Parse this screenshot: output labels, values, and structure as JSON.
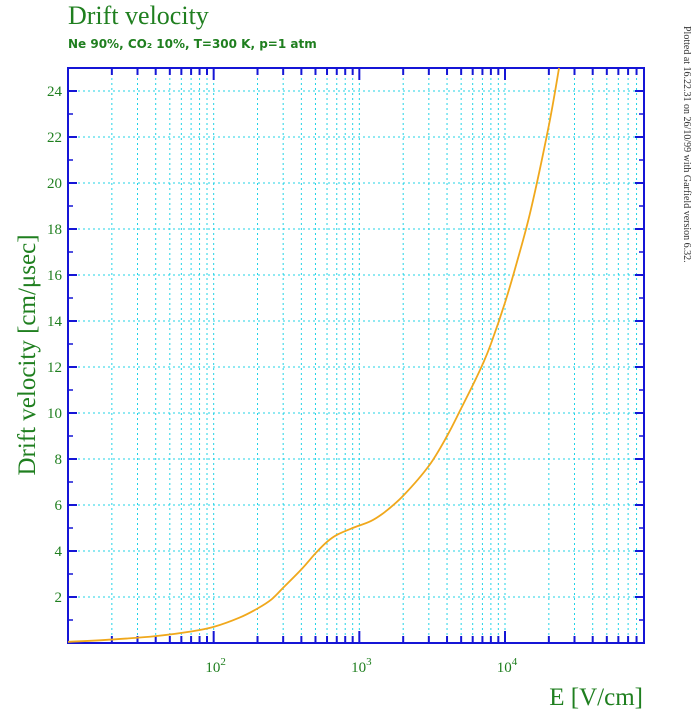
{
  "colors": {
    "frame": "#1515d6",
    "grid": "#22d3e6",
    "curve": "#f0a81c",
    "text": "#1f7f1f"
  },
  "chart_data": {
    "type": "line",
    "title": "Drift velocity",
    "subtitle": "Ne 90%, CO₂ 10%, T=300 K, p=1 atm",
    "xlabel": "E [V/cm]",
    "ylabel": "Drift velocity [cm/μsec]",
    "x_scale": "log",
    "xlim": [
      10,
      90000
    ],
    "ylim": [
      0,
      25
    ],
    "x_tick_labels": [
      {
        "value": 100,
        "base": "10",
        "exp": "2"
      },
      {
        "value": 1000,
        "base": "10",
        "exp": "3"
      },
      {
        "value": 10000,
        "base": "10",
        "exp": "4"
      }
    ],
    "y_ticks": [
      2,
      4,
      6,
      8,
      10,
      12,
      14,
      16,
      18,
      20,
      22,
      24
    ],
    "grid": true,
    "series": [
      {
        "x": [
          10,
          20,
          40,
          70,
          100,
          150,
          200,
          250,
          300,
          400,
          500,
          600,
          700,
          900,
          1200,
          1500,
          2000,
          3000,
          4000,
          5000,
          6000,
          7000,
          8000,
          10000,
          12000,
          15000,
          20000,
          23500
        ],
        "y": [
          0.05,
          0.15,
          0.3,
          0.5,
          0.7,
          1.1,
          1.5,
          1.9,
          2.4,
          3.2,
          3.9,
          4.4,
          4.7,
          5.0,
          5.3,
          5.7,
          6.4,
          7.7,
          9.0,
          10.2,
          11.2,
          12.1,
          13.0,
          14.8,
          16.5,
          18.8,
          22.5,
          25.0
        ]
      }
    ]
  },
  "side_note": "Plotted at 16.22.31 on 26/10/99 with Garfield version 6.32."
}
